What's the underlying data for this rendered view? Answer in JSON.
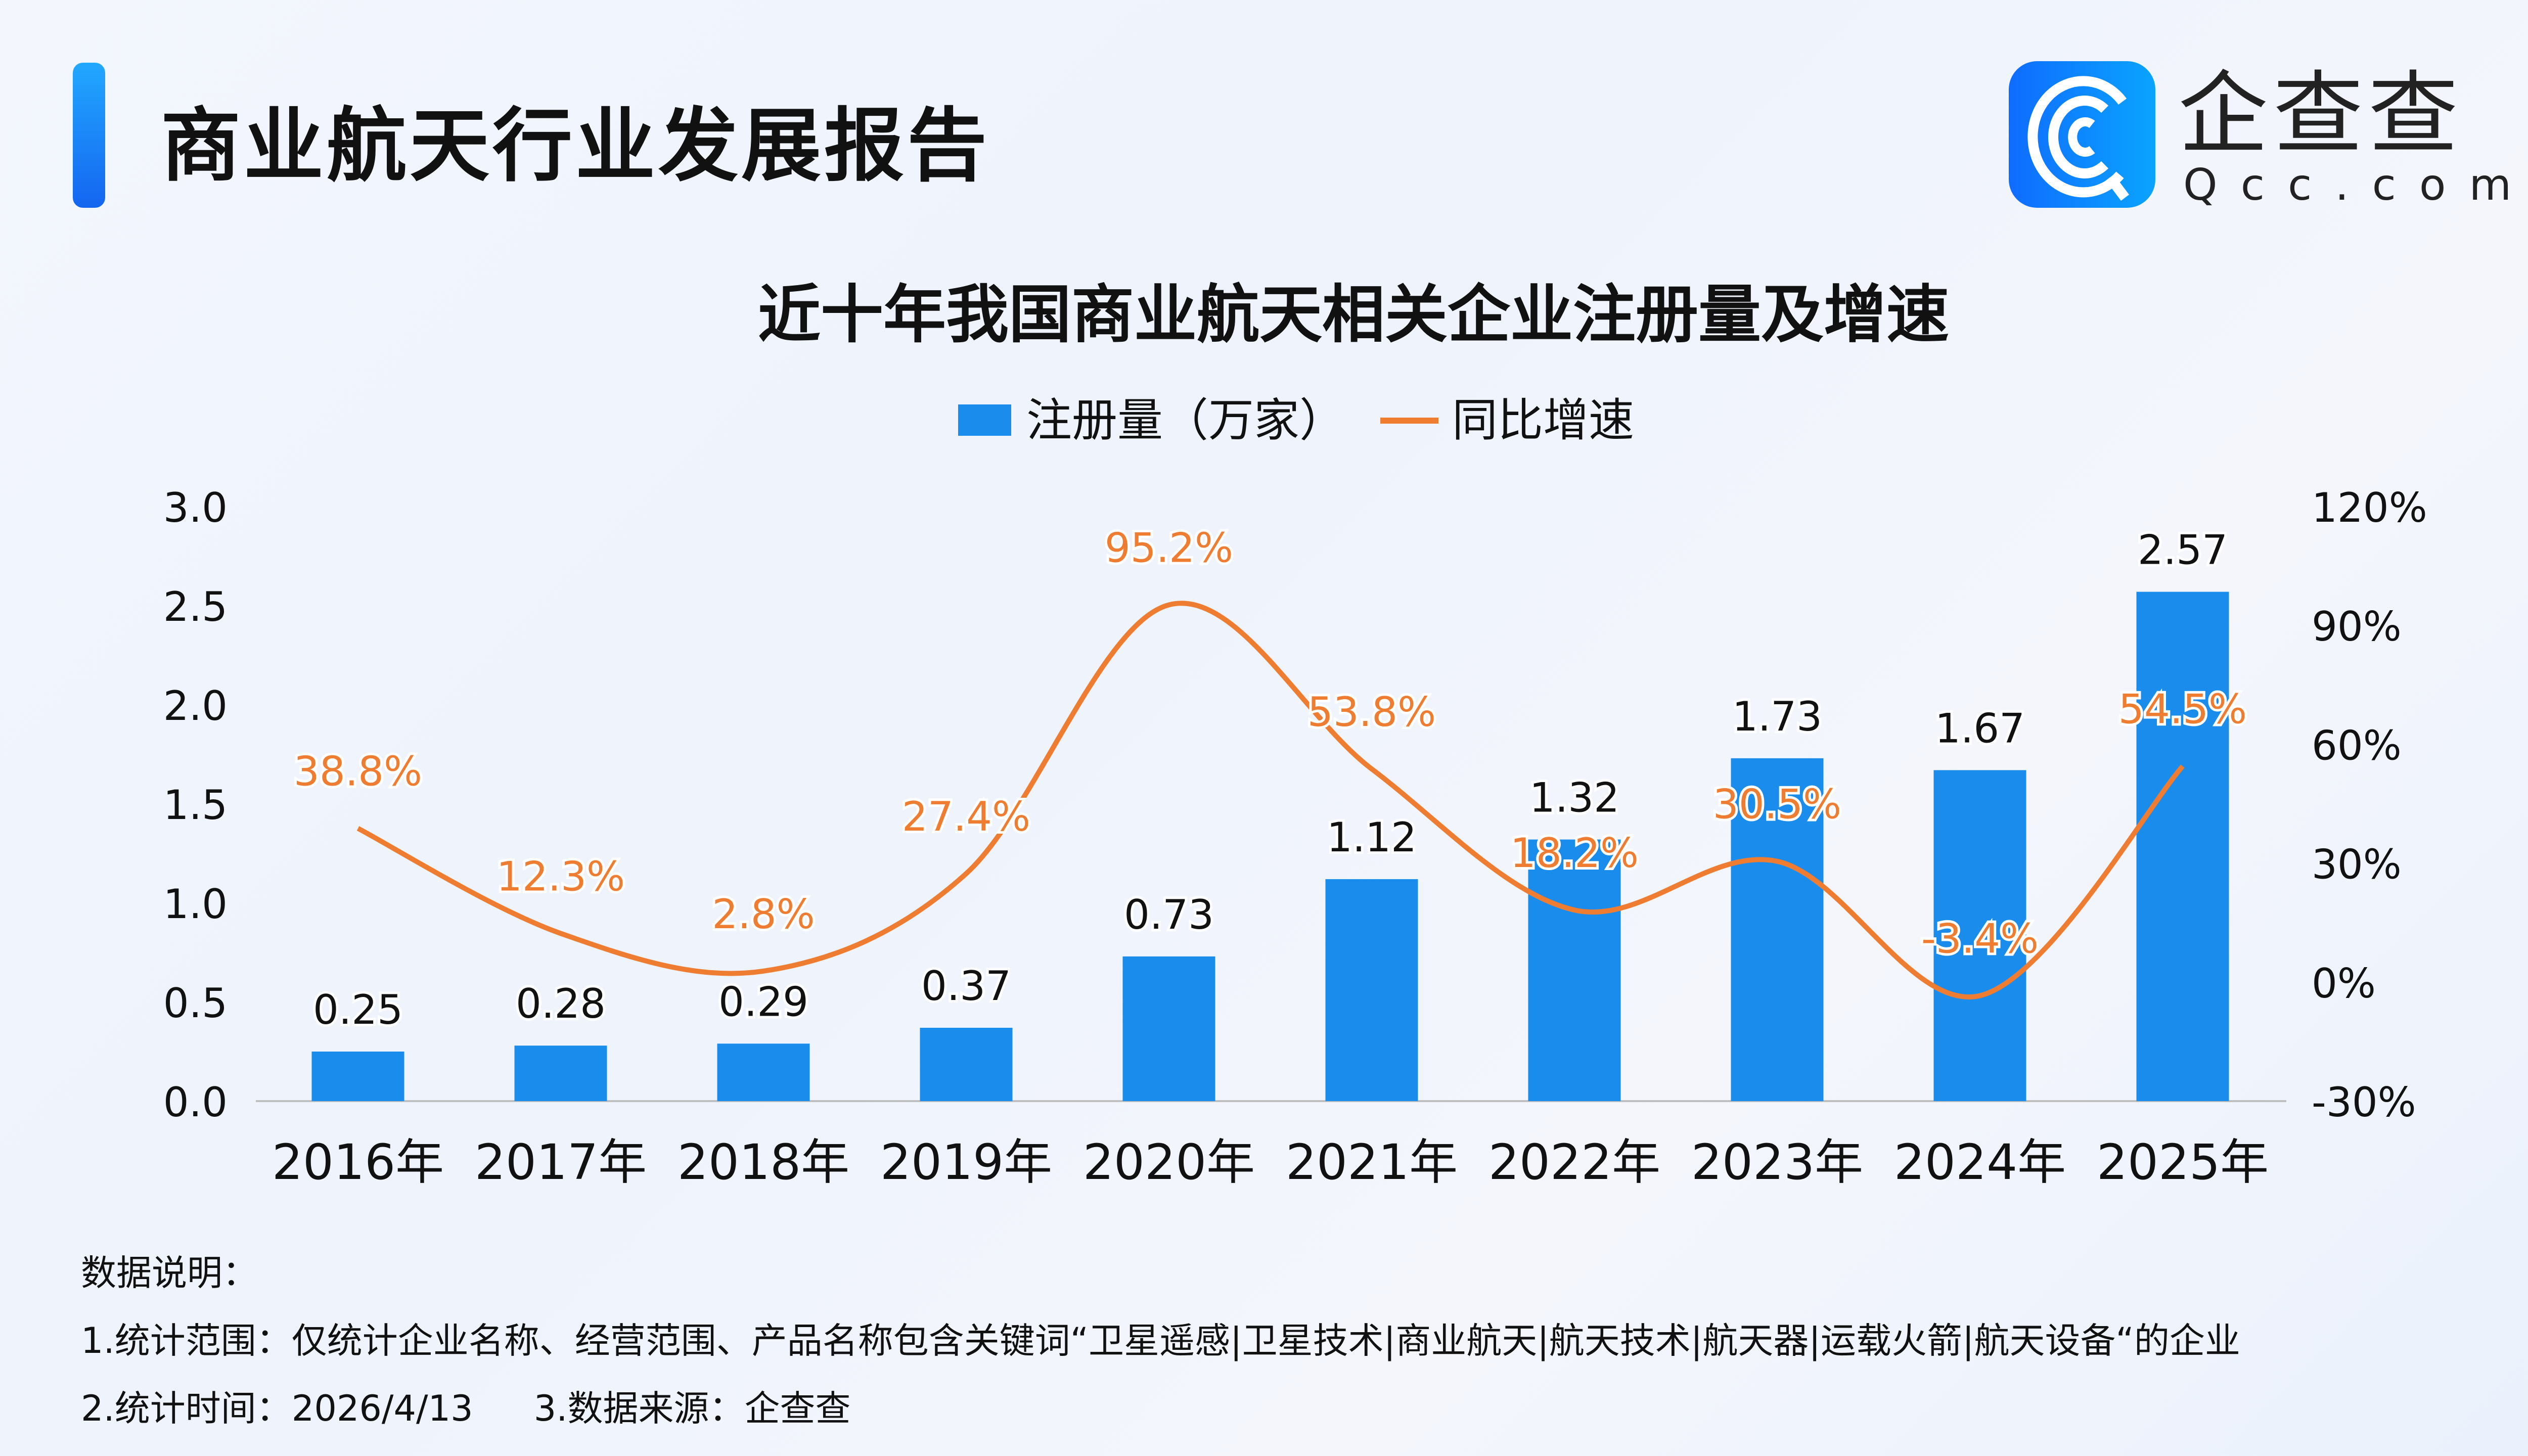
{
  "header": {
    "title": "商业航天行业发展报告",
    "logo": {
      "name_cn": "企查查",
      "name_en": "Qcc.com",
      "icon": "qcc-logo-icon"
    }
  },
  "chart_data": {
    "type": "bar+line",
    "title": "近十年我国商业航天相关企业注册量及增速",
    "categories": [
      "2016年",
      "2017年",
      "2018年",
      "2019年",
      "2020年",
      "2021年",
      "2022年",
      "2023年",
      "2024年",
      "2025年"
    ],
    "series": [
      {
        "name": "注册量（万家）",
        "type": "bar",
        "axis": "left",
        "color": "#1a8cec",
        "values": [
          0.25,
          0.28,
          0.29,
          0.37,
          0.73,
          1.12,
          1.32,
          1.73,
          1.67,
          2.57
        ],
        "labels": [
          "0.25",
          "0.28",
          "0.29",
          "0.37",
          "0.73",
          "1.12",
          "1.32",
          "1.73",
          "1.67",
          "2.57"
        ]
      },
      {
        "name": "同比增速",
        "type": "line",
        "axis": "right",
        "color": "#ee7d31",
        "smooth": true,
        "values": [
          38.8,
          12.3,
          2.8,
          27.4,
          95.2,
          53.8,
          18.2,
          30.5,
          -3.4,
          54.5
        ],
        "labels": [
          "38.8%",
          "12.3%",
          "2.8%",
          "27.4%",
          "95.2%",
          "53.8%",
          "18.2%",
          "30.5%",
          "-3.4%",
          "54.5%"
        ]
      }
    ],
    "y_left": {
      "range": [
        0,
        3.0
      ],
      "ticks": [
        "0.0",
        "0.5",
        "1.0",
        "1.5",
        "2.0",
        "2.5",
        "3.0"
      ]
    },
    "y_right": {
      "range": [
        -30,
        120
      ],
      "ticks": [
        "-30%",
        "0%",
        "30%",
        "60%",
        "90%",
        "120%"
      ]
    },
    "grid": false,
    "legend_placement": "top-center"
  },
  "notes": {
    "heading": "数据说明：",
    "line1": "1.统计范围：仅统计企业名称、经营范围、产品名称包含关键词“卫星遥感|卫星技术|商业航天|航天技术|航天器|运载火箭|航天设备“的企业",
    "line2a": "2.统计时间：2026/4/13",
    "line2b": "3.数据来源：企查查"
  }
}
